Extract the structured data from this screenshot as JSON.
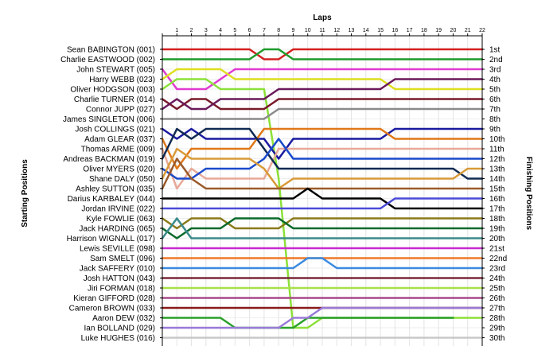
{
  "chart_data": {
    "type": "line",
    "subtype": "position-lap-chart",
    "xlabel": "Laps",
    "ylabel_left": "Starting Positions",
    "ylabel_right": "Finishing Positions",
    "laps": [
      "1",
      "2",
      "3",
      "4",
      "5",
      "6",
      "7",
      "8",
      "9",
      "10",
      "11",
      "12",
      "13",
      "14",
      "15",
      "16",
      "17",
      "18",
      "19",
      "20",
      "21",
      "22"
    ],
    "drivers": [
      "Sean BABINGTON (001)",
      "Charlie EASTWOOD (002)",
      "John STEWART (005)",
      "Harry WEBB (023)",
      "Oliver HODGSON (003)",
      "Charlie TURNER (014)",
      "Connor JUPP (027)",
      "James SINGLETON (006)",
      "Josh COLLINGS (021)",
      "Adam GLEAR (037)",
      "Thomas ARME (009)",
      "Andreas BACKMAN (019)",
      "Oliver MYERS (020)",
      "Shane DALY (050)",
      "Ashley SUTTON (035)",
      "Darius KARBALEY (044)",
      "Jordan IRVINE (022)",
      "Kyle FOWLIE (063)",
      "Jack HARDING (065)",
      "Harrison WIGNALL (017)",
      "Lewis SEVILLE (098)",
      "Sam SMELT (096)",
      "Jack SAFFERY (010)",
      "Josh HATTON (043)",
      "Jiri FORMAN (018)",
      "Kieran GIFFORD (028)",
      "Cameron BROWN (033)",
      "Aaron DEW (032)",
      "Ian BOLLAND (029)",
      "Luke HUGHES (016)"
    ],
    "finishing_positions": [
      "1st",
      "2nd",
      "3rd",
      "4th",
      "5th",
      "6th",
      "7th",
      "8th",
      "9th",
      "10th",
      "11th",
      "12th",
      "13th",
      "14th",
      "15th",
      "16th",
      "17th",
      "18th",
      "19th",
      "20th",
      "21st",
      "22nd",
      "23rd",
      "24th",
      "25th",
      "26th",
      "27th",
      "28th",
      "29th",
      "30th"
    ],
    "series": [
      {
        "color": "#d42020",
        "start": 1,
        "positions": [
          1,
          1,
          1,
          1,
          1,
          1,
          2,
          2,
          1,
          1,
          1,
          1,
          1,
          1,
          1,
          1,
          1,
          1,
          1,
          1,
          1,
          1
        ]
      },
      {
        "color": "#1f9a2a",
        "start": 2,
        "positions": [
          2,
          2,
          2,
          2,
          2,
          2,
          1,
          1,
          2,
          2,
          2,
          2,
          2,
          2,
          2,
          2,
          2,
          2,
          2,
          2,
          2,
          2
        ]
      },
      {
        "color": "#e03ad0",
        "start": 3,
        "positions": [
          5,
          5,
          5,
          4,
          3,
          3,
          3,
          3,
          3,
          3,
          3,
          3,
          3,
          3,
          3,
          3,
          3,
          3,
          3,
          3,
          3,
          3
        ]
      },
      {
        "color": "#dede20",
        "start": 4,
        "positions": [
          3,
          3,
          3,
          3,
          4,
          4,
          4,
          4,
          4,
          4,
          4,
          4,
          4,
          4,
          4,
          5,
          5,
          5,
          5,
          5,
          5,
          5
        ]
      },
      {
        "color": "#8ce03a",
        "start": 5,
        "positions": [
          4,
          4,
          4,
          5,
          5,
          5,
          5,
          14,
          29,
          29,
          28,
          28,
          28,
          28,
          28,
          28,
          28,
          28,
          28,
          28,
          28,
          28
        ]
      },
      {
        "color": "#7a1a2a",
        "start": 6,
        "positions": [
          7,
          6,
          6,
          7,
          7,
          7,
          7,
          6,
          6,
          6,
          6,
          6,
          6,
          6,
          6,
          6,
          6,
          6,
          6,
          6,
          6,
          6
        ]
      },
      {
        "color": "#6a1a5a",
        "start": 7,
        "positions": [
          6,
          7,
          7,
          6,
          6,
          6,
          6,
          5,
          5,
          5,
          5,
          5,
          5,
          5,
          5,
          4,
          4,
          4,
          4,
          4,
          4,
          4
        ]
      },
      {
        "color": "#8a8a8a",
        "start": 8,
        "positions": [
          8,
          8,
          8,
          8,
          8,
          8,
          8,
          7,
          7,
          7,
          7,
          7,
          7,
          7,
          7,
          7,
          7,
          7,
          7,
          7,
          7,
          7
        ]
      },
      {
        "color": "#1a1aa0",
        "start": 9,
        "positions": [
          10,
          9,
          10,
          10,
          10,
          10,
          10,
          12,
          10,
          10,
          10,
          10,
          10,
          10,
          10,
          9,
          9,
          9,
          9,
          9,
          9,
          9
        ]
      },
      {
        "color": "#e07818",
        "start": 10,
        "positions": [
          13,
          11,
          11,
          11,
          11,
          11,
          9,
          9,
          9,
          9,
          9,
          9,
          9,
          9,
          9,
          10,
          10,
          10,
          10,
          10,
          10,
          10
        ]
      },
      {
        "color": "#e8a898",
        "start": 11,
        "positions": [
          15,
          13,
          14,
          14,
          14,
          14,
          14,
          11,
          11,
          11,
          11,
          11,
          11,
          11,
          11,
          11,
          11,
          11,
          11,
          11,
          11,
          11
        ]
      },
      {
        "color": "#102a52",
        "start": 12,
        "positions": [
          9,
          10,
          9,
          9,
          9,
          9,
          11,
          13,
          13,
          13,
          13,
          13,
          13,
          13,
          13,
          13,
          13,
          13,
          13,
          13,
          14,
          14
        ]
      },
      {
        "color": "#1a4acb",
        "start": 13,
        "positions": [
          14,
          14,
          13,
          13,
          13,
          13,
          12,
          10,
          12,
          12,
          12,
          12,
          12,
          12,
          12,
          12,
          12,
          12,
          12,
          12,
          12,
          12
        ]
      },
      {
        "color": "#d89a38",
        "start": 14,
        "positions": [
          11,
          12,
          12,
          12,
          12,
          12,
          13,
          15,
          14,
          14,
          14,
          14,
          14,
          14,
          14,
          14,
          14,
          14,
          14,
          14,
          13,
          13
        ]
      },
      {
        "color": "#9a5a2a",
        "start": 15,
        "positions": [
          12,
          14,
          15,
          15,
          15,
          15,
          15,
          15,
          15,
          15,
          15,
          15,
          15,
          15,
          15,
          15,
          15,
          15,
          15,
          15,
          15,
          15
        ]
      },
      {
        "color": "#000000",
        "start": 16,
        "positions": [
          16,
          16,
          16,
          16,
          16,
          16,
          16,
          16,
          16,
          15,
          16,
          16,
          16,
          16,
          16,
          17,
          17,
          17,
          17,
          17,
          17,
          17
        ]
      },
      {
        "color": "#4a4ad8",
        "start": 17,
        "positions": [
          17,
          17,
          17,
          17,
          17,
          17,
          17,
          17,
          17,
          17,
          17,
          17,
          17,
          17,
          17,
          16,
          16,
          16,
          16,
          16,
          16,
          16
        ]
      },
      {
        "color": "#8a7a1a",
        "start": 18,
        "positions": [
          19,
          18,
          18,
          18,
          19,
          19,
          19,
          19,
          18,
          18,
          18,
          18,
          18,
          18,
          18,
          18,
          18,
          18,
          18,
          18,
          18,
          18
        ]
      },
      {
        "color": "#0a6a2a",
        "start": 19,
        "positions": [
          20,
          19,
          19,
          19,
          18,
          18,
          18,
          18,
          19,
          19,
          19,
          19,
          19,
          19,
          19,
          19,
          19,
          19,
          19,
          19,
          19,
          19
        ]
      },
      {
        "color": "#3a8a8a",
        "start": 20,
        "positions": [
          18,
          20,
          20,
          20,
          20,
          20,
          20,
          20,
          20,
          20,
          20,
          20,
          20,
          20,
          20,
          20,
          20,
          20,
          20,
          20,
          20,
          20
        ]
      },
      {
        "color": "#c82ad0",
        "start": 21,
        "positions": [
          21,
          21,
          21,
          21,
          21,
          21,
          21,
          21,
          21,
          21,
          21,
          21,
          21,
          21,
          21,
          21,
          21,
          21,
          21,
          21,
          21,
          21
        ]
      },
      {
        "color": "#f07828",
        "start": 22,
        "positions": [
          22,
          22,
          22,
          22,
          22,
          22,
          22,
          22,
          22,
          22,
          22,
          22,
          22,
          22,
          22,
          22,
          22,
          22,
          22,
          22,
          22,
          22
        ]
      },
      {
        "color": "#3a8ae0",
        "start": 23,
        "positions": [
          23,
          23,
          23,
          23,
          23,
          23,
          23,
          23,
          23,
          22,
          22,
          23,
          23,
          23,
          23,
          23,
          23,
          23,
          23,
          23,
          23,
          23
        ]
      },
      {
        "color": "#7a2a3a",
        "start": 24,
        "positions": [
          24,
          24,
          24,
          24,
          24,
          24,
          24,
          24,
          24,
          24,
          24,
          24,
          24,
          24,
          24,
          24,
          24,
          24,
          24,
          24,
          24,
          24
        ]
      },
      {
        "color": "#a8e048",
        "start": 25,
        "positions": [
          25,
          25,
          25,
          25,
          25,
          25,
          25,
          25,
          25,
          25,
          25,
          25,
          25,
          25,
          25,
          25,
          25,
          25,
          25,
          25,
          25,
          25
        ]
      },
      {
        "color": "#a84a8a",
        "start": 26,
        "positions": [
          26,
          26,
          26,
          26,
          26,
          26,
          26,
          26,
          26,
          26,
          26,
          26,
          26,
          26,
          26,
          26,
          26,
          26,
          26,
          26,
          26,
          26
        ]
      },
      {
        "color": "#8a1a1a",
        "start": 27,
        "positions": [
          27,
          27,
          27,
          27,
          27,
          27,
          27,
          27,
          27,
          27,
          27,
          27,
          27,
          27,
          27,
          27,
          27,
          27,
          27,
          27,
          27,
          27
        ]
      },
      {
        "color": "#2aa02a",
        "start": 28,
        "positions": [
          28,
          28,
          28,
          28,
          29,
          29,
          29,
          29,
          29,
          28,
          28,
          28,
          28,
          28,
          28,
          28,
          28,
          28,
          28,
          28
        ]
      },
      {
        "color": "#9a7ad8",
        "start": 29,
        "positions": [
          29,
          29,
          29,
          29,
          29,
          29,
          29,
          29,
          28,
          28,
          27,
          27,
          27,
          27,
          27,
          27,
          27,
          27,
          27,
          27,
          27,
          27
        ]
      },
      {
        "color": "#c8c8c8",
        "start": 30,
        "positions": [
          30,
          30,
          30,
          30,
          30,
          30,
          30,
          30,
          30,
          30,
          30,
          30,
          30,
          30,
          30,
          30,
          30,
          30,
          30,
          30,
          30,
          30
        ]
      }
    ]
  }
}
